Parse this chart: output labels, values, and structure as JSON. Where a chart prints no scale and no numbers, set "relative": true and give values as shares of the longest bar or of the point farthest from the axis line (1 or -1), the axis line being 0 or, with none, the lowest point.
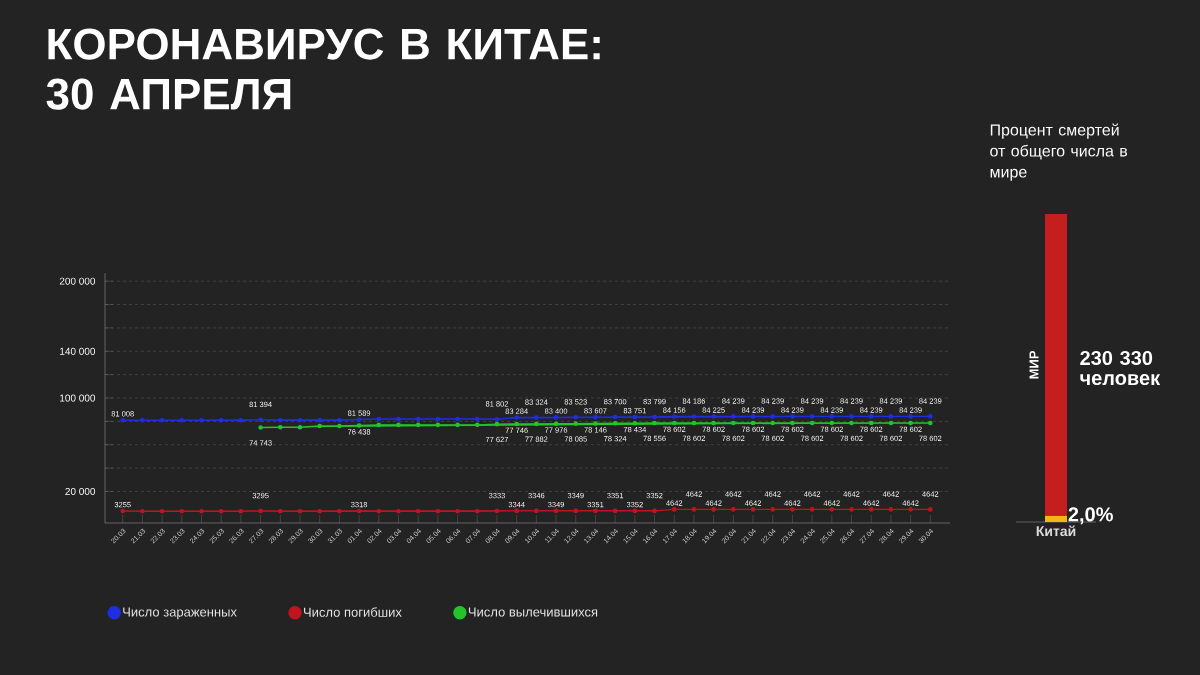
{
  "chart_data": [
    {
      "type": "line",
      "title": "КОРОНАВИРУС В КИТАЕ: 30 АПРЕЛЯ",
      "categories": [
        "20.03",
        "21.03",
        "22.03",
        "23.03",
        "24.03",
        "25.03",
        "26.03",
        "27.03",
        "28.03",
        "29.03",
        "30.03",
        "31.03",
        "01.04",
        "02.04",
        "03.04",
        "04.04",
        "05.04",
        "06.04",
        "07.04",
        "08.04",
        "09.04",
        "10.04",
        "11.04",
        "12.04",
        "13.04",
        "14.04",
        "15.04",
        "16.04",
        "17.04",
        "18.04",
        "19.04",
        "20.04",
        "21.04",
        "22.04",
        "23.04",
        "24.04",
        "25.04",
        "26.04",
        "27.04",
        "28.04",
        "29.04",
        "30.04"
      ],
      "series": [
        {
          "name": "Число зараженных",
          "color": "#1f2ee0",
          "values": [
            81008,
            81000,
            81000,
            81000,
            81000,
            81000,
            81000,
            81394,
            81000,
            81000,
            81000,
            81000,
            81589,
            82000,
            82000,
            82000,
            82000,
            82000,
            82000,
            81802,
            83284,
            83324,
            83400,
            83523,
            83607,
            83700,
            83751,
            83799,
            84156,
            84186,
            84225,
            84239,
            84239,
            84239,
            84239,
            84239,
            84239,
            84239,
            84239,
            84239,
            84239,
            84239
          ],
          "value_labels": [
            "81 008",
            null,
            null,
            null,
            null,
            null,
            null,
            "81 394",
            null,
            null,
            null,
            null,
            "81 589",
            null,
            null,
            null,
            null,
            null,
            null,
            "81 802",
            "83 284",
            "83 324",
            "83 400",
            "83 523",
            "83 607",
            "83 700",
            "83 751",
            "83 799",
            "84 156",
            "84 186",
            "84 225",
            "84 239",
            "84 239",
            "84 239",
            "84 239",
            "84 239",
            "84 239",
            "84 239",
            "84 239",
            "84 239",
            "84 239",
            "84 239"
          ]
        },
        {
          "name": "Число погибших",
          "color": "#c0141e",
          "values": [
            3255,
            3000,
            3000,
            3000,
            3000,
            3000,
            3000,
            3295,
            3000,
            3000,
            3000,
            3000,
            3318,
            3000,
            3000,
            3000,
            3000,
            3000,
            3000,
            3333,
            3344,
            3346,
            3349,
            3349,
            3351,
            3351,
            3352,
            3352,
            4642,
            4642,
            4642,
            4642,
            4642,
            4642,
            4642,
            4642,
            4642,
            4642,
            4642,
            4642,
            4642,
            4642
          ],
          "value_labels": [
            "3255",
            null,
            null,
            null,
            null,
            null,
            null,
            "3295",
            null,
            null,
            null,
            null,
            "3318",
            null,
            null,
            null,
            null,
            null,
            null,
            "3333",
            "3344",
            "3346",
            "3349",
            "3349",
            "3351",
            "3351",
            "3352",
            "3352",
            "4642",
            "4642",
            "4642",
            "4642",
            "4642",
            "4642",
            "4642",
            "4642",
            "4642",
            "4642",
            "4642",
            "4642",
            "4642",
            "4642"
          ]
        },
        {
          "name": "Число вылечившихся",
          "color": "#22c42a",
          "values": [
            null,
            null,
            null,
            null,
            null,
            null,
            null,
            74743,
            75000,
            75000,
            76000,
            76000,
            76438,
            77000,
            77000,
            77000,
            77000,
            77000,
            77000,
            77627,
            77746,
            77882,
            77976,
            78085,
            78146,
            78324,
            78434,
            78556,
            78602,
            78602,
            78602,
            78602,
            78602,
            78602,
            78602,
            78602,
            78602,
            78602,
            78602,
            78602,
            78602,
            78602
          ],
          "value_labels": [
            null,
            null,
            null,
            null,
            null,
            null,
            null,
            "74 743",
            null,
            null,
            null,
            null,
            "76 438",
            null,
            null,
            null,
            null,
            null,
            null,
            "77 627",
            "77 746",
            "77 882",
            "77 976",
            "78 085",
            "78 146",
            "78 324",
            "78 434",
            "78 556",
            "78 602",
            "78 602",
            "78 602",
            "78 602",
            "78 602",
            "78 602",
            "78 602",
            "78 602",
            "78 602",
            "78 602",
            "78 602",
            "78 602",
            "78 602",
            "78 602"
          ]
        }
      ],
      "ylim": [
        -7000,
        207000
      ],
      "yticks": [
        {
          "value": 20000,
          "label": "20 000"
        },
        {
          "value": 40000,
          "label": null
        },
        {
          "value": 60000,
          "label": null
        },
        {
          "value": 80000,
          "label": null
        },
        {
          "value": 100000,
          "label": "100 000"
        },
        {
          "value": 120000,
          "label": null
        },
        {
          "value": 140000,
          "label": "140 000"
        },
        {
          "value": 160000,
          "label": null
        },
        {
          "value": 180000,
          "label": null
        },
        {
          "value": 200000,
          "label": "200 000"
        }
      ],
      "grid": "y",
      "legend": "bottom",
      "marker": "circle"
    },
    {
      "type": "bar",
      "title": "Процент смертей от общего числа в мире",
      "categories": [
        "Китай"
      ],
      "stacked": true,
      "relative": true,
      "annotations": [
        "230 330 человек",
        {
          "text": "2,0%",
          "x": "Китай",
          "y": 0.02
        }
      ],
      "series": [
        {
          "color": "#f2b60f",
          "values": [
            0.02
          ]
        },
        {
          "name": "МИР",
          "color": "#c41e1e",
          "values": [
            0.98
          ]
        }
      ]
    }
  ]
}
